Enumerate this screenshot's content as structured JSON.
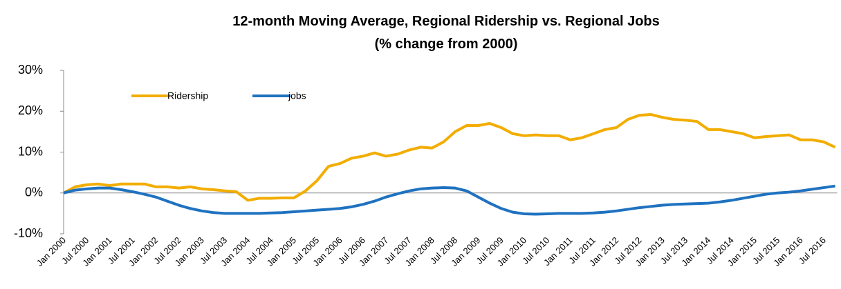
{
  "chart_data": {
    "type": "line",
    "title": "12-month Moving Average, Regional Ridership vs. Regional Jobs",
    "subtitle": "(% change from 2000)",
    "categories": [
      "Jan 2000",
      null,
      "Jul 2000",
      null,
      "Jan 2001",
      null,
      "Jul 2001",
      null,
      "Jan 2002",
      null,
      "Jul 2002",
      null,
      "Jan 2003",
      null,
      "Jul 2003",
      null,
      "Jan 2004",
      null,
      "Jul 2004",
      null,
      "Jan 2005",
      null,
      "Jul 2005",
      null,
      "Jan 2006",
      null,
      "Jul 2006",
      null,
      "Jan 2007",
      null,
      "Jul 2007",
      null,
      "Jan 2008",
      null,
      "Jul 2008",
      null,
      "Jan 2009",
      null,
      "Jul 2009",
      null,
      "Jan 2010",
      null,
      "Jul 2010",
      null,
      "Jan 2011",
      null,
      "Jul 2011",
      null,
      "Jan 2012",
      null,
      "Jul 2012",
      null,
      "Jan 2013",
      null,
      "Jul 2013",
      null,
      "Jan 2014",
      null,
      "Jul 2014",
      null,
      "Jan 2015",
      null,
      "Jul 2015",
      null,
      "Jan 2016",
      null,
      "Jul 2016",
      null
    ],
    "series": [
      {
        "name": "Ridership",
        "color": "#f2ad00",
        "values": [
          0,
          1.5,
          2,
          2.2,
          1.8,
          2.2,
          2.2,
          2.2,
          1.5,
          1.5,
          1.2,
          1.5,
          1.0,
          0.8,
          0.5,
          0.3,
          -1.8,
          -1.3,
          -1.3,
          -1.2,
          -1.2,
          0.5,
          3,
          6.5,
          7.2,
          8.5,
          9,
          9.8,
          9,
          9.5,
          10.5,
          11.2,
          11,
          12.5,
          15,
          16.5,
          16.5,
          17,
          16,
          14.5,
          14,
          14.2,
          14,
          14,
          13,
          13.5,
          14.5,
          15.5,
          16,
          18,
          19,
          19.2,
          18.5,
          18,
          17.8,
          17.5,
          15.5,
          15.5,
          15,
          14.5,
          13.5,
          13.8,
          14,
          14.2,
          13,
          13,
          12.5,
          11.2
        ]
      },
      {
        "name": "jobs",
        "color": "#1f72c0",
        "values": [
          0,
          0.7,
          1,
          1.2,
          1.2,
          0.8,
          0.3,
          -0.3,
          -1,
          -2,
          -3,
          -3.8,
          -4.4,
          -4.8,
          -5,
          -5,
          -5,
          -5,
          -4.9,
          -4.8,
          -4.6,
          -4.4,
          -4.2,
          -4,
          -3.8,
          -3.4,
          -2.8,
          -2,
          -1,
          -0.2,
          0.5,
          1,
          1.2,
          1.3,
          1.2,
          0.5,
          -1,
          -2.5,
          -3.8,
          -4.7,
          -5.1,
          -5.2,
          -5.1,
          -5,
          -5,
          -5,
          -4.9,
          -4.7,
          -4.4,
          -4,
          -3.6,
          -3.3,
          -3,
          -2.8,
          -2.7,
          -2.6,
          -2.5,
          -2.2,
          -1.8,
          -1.3,
          -0.8,
          -0.3,
          0,
          0.2,
          0.5,
          0.9,
          1.3,
          1.7
        ]
      }
    ],
    "ylim": [
      -10,
      30
    ],
    "yticks": [
      {
        "value": -10,
        "label": "-10%"
      },
      {
        "value": 0,
        "label": "0%"
      },
      {
        "value": 10,
        "label": "10%"
      },
      {
        "value": 20,
        "label": "20%"
      },
      {
        "value": 30,
        "label": "30%"
      }
    ],
    "legend": "top"
  }
}
